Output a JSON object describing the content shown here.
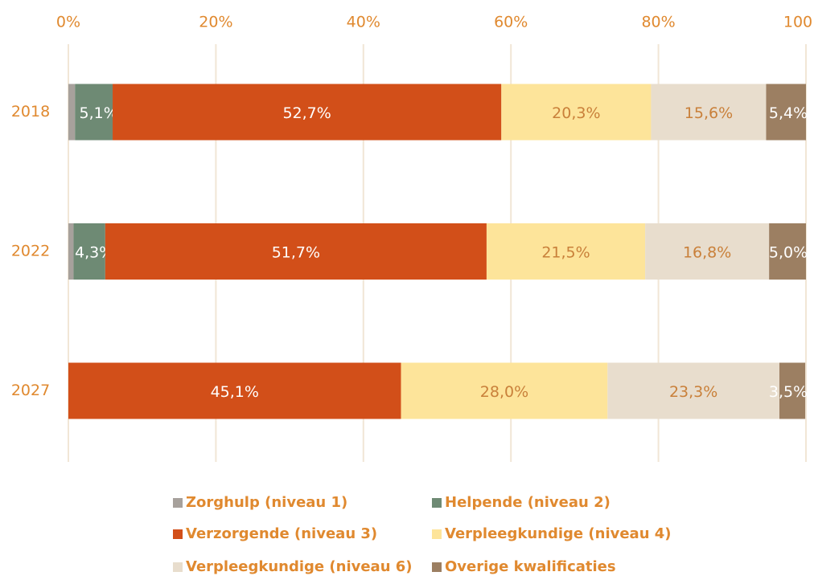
{
  "chart_data": {
    "type": "bar",
    "orientation": "horizontal",
    "stacked": true,
    "categories": [
      "2018",
      "2022",
      "2027"
    ],
    "xlim": [
      0,
      100
    ],
    "xticks": [
      {
        "value": 0,
        "label": "0%"
      },
      {
        "value": 20,
        "label": "20%"
      },
      {
        "value": 40,
        "label": "40%"
      },
      {
        "value": 60,
        "label": "60%"
      },
      {
        "value": 80,
        "label": "80%"
      },
      100
    ],
    "grid": true,
    "legend": "bottom",
    "series": [
      {
        "name": "Zorghulp (niveau 1)",
        "color": "#a7a19c",
        "values": [
          0.9,
          0.7,
          0
        ],
        "value_labels": [
          null,
          null,
          null
        ]
      },
      {
        "name": "Helpende (niveau 2)",
        "color": "#6e8a74",
        "values": [
          5.1,
          4.3,
          0
        ],
        "value_labels": [
          "5,1%",
          "4,3%",
          null
        ]
      },
      {
        "name": "Verzorgende (niveau 3)",
        "color": "#d24f19",
        "values": [
          52.7,
          51.7,
          45.1
        ],
        "value_labels": [
          "52,7%",
          "51,7%",
          "45,1%"
        ]
      },
      {
        "name": "Verpleegkundige (niveau 4)",
        "color": "#fde49a",
        "values": [
          20.3,
          21.5,
          28.0
        ],
        "value_labels": [
          "20,3%",
          "21,5%",
          "28,0%"
        ]
      },
      {
        "name": "Verpleegkundige (niveau 6)",
        "color": "#e8ddcd",
        "values": [
          15.6,
          16.8,
          23.3
        ],
        "value_labels": [
          "15,6%",
          "16,8%",
          "23,3%"
        ]
      },
      {
        "name": "Overige kwalificaties",
        "color": "#9c7f62",
        "values": [
          5.4,
          5.0,
          3.5
        ],
        "value_labels": [
          "5,4%",
          "5,0%",
          "3,5%"
        ]
      }
    ]
  }
}
